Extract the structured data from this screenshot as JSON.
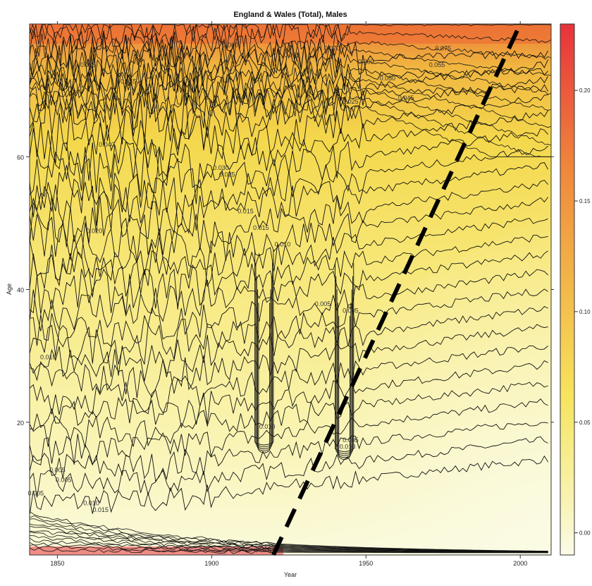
{
  "chart_data": {
    "type": "heatmap",
    "title": "England & Wales (Total), Males",
    "xlabel": "Year",
    "ylabel": "Age",
    "xlim": [
      1841,
      2010
    ],
    "ylim": [
      0,
      80
    ],
    "x_ticks": [
      {
        "value": 1850,
        "label": "1850"
      },
      {
        "value": 1900,
        "label": "1900"
      },
      {
        "value": 1950,
        "label": "1950"
      },
      {
        "value": 2000,
        "label": "2000"
      }
    ],
    "y_ticks": [
      {
        "value": 20,
        "label": "20"
      },
      {
        "value": 40,
        "label": "40"
      },
      {
        "value": 60,
        "label": "60"
      }
    ],
    "colorbar": {
      "range": [
        -0.01,
        0.23
      ],
      "ticks": [
        {
          "value": 0.0,
          "label": "0.00"
        },
        {
          "value": 0.05,
          "label": "0.05"
        },
        {
          "value": 0.1,
          "label": "0.10"
        },
        {
          "value": 0.15,
          "label": "0.15"
        },
        {
          "value": 0.2,
          "label": "0.20"
        }
      ],
      "colors": {
        "low": "#fafadc",
        "mid_low": "#f6ee8c",
        "mid": "#f5d84a",
        "mid_high": "#ef9a3c",
        "high": "#e8323c"
      }
    },
    "contour_labels": [
      {
        "year": 1850,
        "age": 12.5,
        "label": "0.005"
      },
      {
        "year": 1852,
        "age": 11.0,
        "label": "0.005"
      },
      {
        "year": 1843,
        "age": 9.0,
        "label": "0.005"
      },
      {
        "year": 1847,
        "age": 29.5,
        "label": "0.010"
      },
      {
        "year": 1862,
        "age": 48.5,
        "label": "0.020"
      },
      {
        "year": 1866,
        "age": 61.5,
        "label": "0.040"
      },
      {
        "year": 1860,
        "age": 73.5,
        "label": "0.025"
      },
      {
        "year": 1873,
        "age": 71.0,
        "label": "0.045"
      },
      {
        "year": 1906,
        "age": 76.5,
        "label": "0.060"
      },
      {
        "year": 1903,
        "age": 58.0,
        "label": "0.030"
      },
      {
        "year": 1905,
        "age": 57.0,
        "label": "0.025"
      },
      {
        "year": 1911,
        "age": 51.5,
        "label": "0.015"
      },
      {
        "year": 1916,
        "age": 49.0,
        "label": "0.015"
      },
      {
        "year": 1923,
        "age": 46.5,
        "label": "0.010"
      },
      {
        "year": 1926,
        "age": 75.0,
        "label": "0.065"
      },
      {
        "year": 1936,
        "age": 37.5,
        "label": "0.005"
      },
      {
        "year": 1939,
        "age": 76.0,
        "label": "0.070"
      },
      {
        "year": 1945,
        "age": 68.0,
        "label": "0.025"
      },
      {
        "year": 1950,
        "age": 74.0,
        "label": "0.060"
      },
      {
        "year": 1957,
        "age": 71.5,
        "label": "0.050"
      },
      {
        "year": 1963,
        "age": 68.5,
        "label": "0.045"
      },
      {
        "year": 1975,
        "age": 76.0,
        "label": "0.075"
      },
      {
        "year": 1973,
        "age": 73.5,
        "label": "0.055"
      },
      {
        "year": 1945,
        "age": 36.5,
        "label": "0.005"
      },
      {
        "year": 1918,
        "age": 19.0,
        "label": "0.010"
      },
      {
        "year": 1945,
        "age": 17.0,
        "label": "0.005"
      },
      {
        "year": 1944,
        "age": 16.0,
        "label": "0.010"
      },
      {
        "year": 1861,
        "age": 7.5,
        "label": "0.010"
      },
      {
        "year": 1864,
        "age": 6.5,
        "label": "0.015"
      }
    ],
    "dashed_line": {
      "from": {
        "year": 1920,
        "age": 0
      },
      "to": {
        "year": 2000,
        "age": 80
      }
    },
    "legend": "colorbar-right",
    "grid": false
  }
}
